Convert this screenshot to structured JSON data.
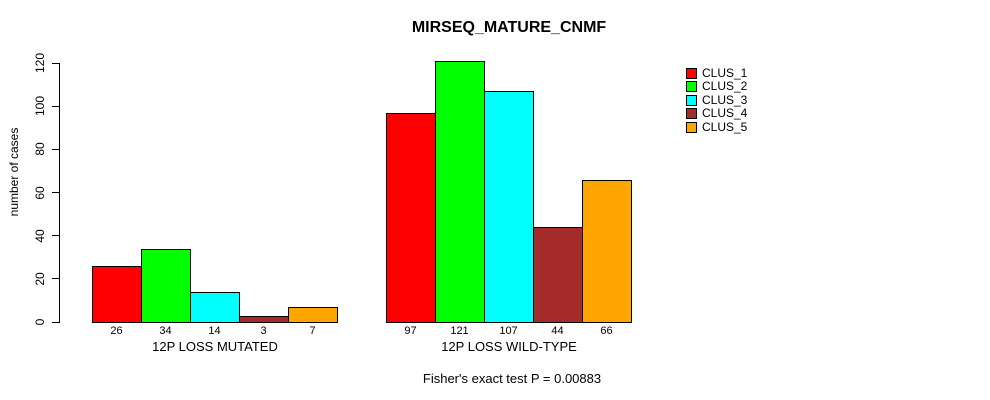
{
  "chart_data": {
    "type": "bar",
    "title": "MIRSEQ_MATURE_CNMF",
    "ylabel": "number of cases",
    "xlabel": "",
    "categories": [
      "12P LOSS MUTATED",
      "12P LOSS WILD-TYPE"
    ],
    "series": [
      {
        "name": "CLUS_1",
        "color": "#FF0000",
        "values": [
          26,
          97
        ]
      },
      {
        "name": "CLUS_2",
        "color": "#00FF00",
        "values": [
          34,
          121
        ]
      },
      {
        "name": "CLUS_3",
        "color": "#00FFFF",
        "values": [
          14,
          107
        ]
      },
      {
        "name": "CLUS_4",
        "color": "#A52A2A",
        "values": [
          3,
          44
        ]
      },
      {
        "name": "CLUS_5",
        "color": "#FFA500",
        "values": [
          7,
          66
        ]
      }
    ],
    "bar_value_labels": [
      [
        26,
        34,
        14,
        3,
        7
      ],
      [
        97,
        121,
        107,
        44,
        66
      ]
    ],
    "yticks": [
      0,
      20,
      40,
      60,
      80,
      100,
      120
    ],
    "ylim": [
      0,
      120
    ],
    "grid": false,
    "legend_position": "right",
    "legend_entries": [
      "CLUS_1",
      "CLUS_2",
      "CLUS_3",
      "CLUS_4",
      "CLUS_5"
    ],
    "annotation": "Fisher's exact test P = 0.00883",
    "axis_color": "#000000",
    "background_color": "#FFFFFF"
  }
}
